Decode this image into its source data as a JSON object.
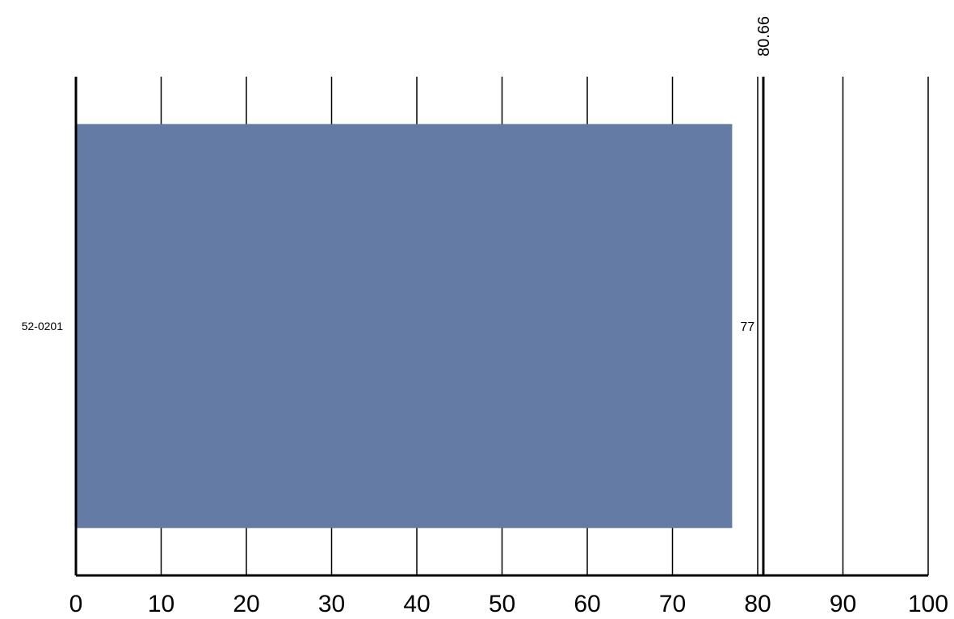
{
  "chart_data": {
    "type": "bar",
    "orientation": "horizontal",
    "title": "",
    "xlabel": "",
    "ylabel": "",
    "categories": [
      "52-0201"
    ],
    "values": [
      77
    ],
    "data_labels": [
      "77"
    ],
    "xlim": [
      0,
      100
    ],
    "x_ticks": [
      0,
      10,
      20,
      30,
      40,
      50,
      60,
      70,
      80,
      90,
      100
    ],
    "x_tick_labels": [
      "0",
      "10",
      "20",
      "30",
      "40",
      "50",
      "60",
      "70",
      "80",
      "90",
      "100"
    ],
    "grid": "vertical",
    "legend": "none",
    "reference_line": {
      "value": 80.66,
      "label": "80.66"
    },
    "colors": {
      "bar": "#647ca5",
      "grid": "#000000",
      "axis": "#000000"
    }
  }
}
